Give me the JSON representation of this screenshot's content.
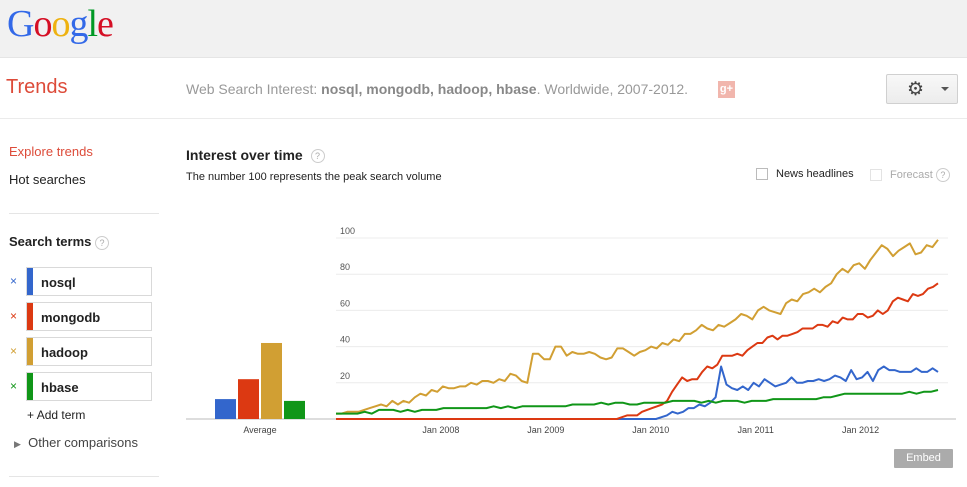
{
  "logo": {
    "letters": [
      "G",
      "o",
      "o",
      "g",
      "l",
      "e"
    ],
    "colors": [
      "#3369e8",
      "#d50f25",
      "#eeb211",
      "#3369e8",
      "#009925",
      "#d50f25"
    ]
  },
  "header": {
    "app_title": "Trends",
    "subtitle_prefix": "Web Search Interest: ",
    "subtitle_terms": "nosql, mongodb, hadoop, hbase",
    "subtitle_suffix": ". Worldwide, 2007-2012.",
    "gplus_label": "g+",
    "settings_icon": "gear-icon"
  },
  "sidebar": {
    "explore": "Explore trends",
    "hot": "Hot searches",
    "search_terms_title": "Search terms",
    "help": "?",
    "terms": [
      {
        "label": "nosql",
        "color": "#3366cc"
      },
      {
        "label": "mongodb",
        "color": "#dc3912"
      },
      {
        "label": "hadoop",
        "color": "#d19f33"
      },
      {
        "label": "hbase",
        "color": "#109618"
      }
    ],
    "remove_glyph": "×",
    "add_term": "Add term",
    "other_comparisons": "Other comparisons"
  },
  "main": {
    "title": "Interest over time",
    "note": "The number 100 represents the peak search volume",
    "news_headlines": "News headlines",
    "forecast": "Forecast",
    "embed": "Embed"
  },
  "chart_data": {
    "type": "line",
    "ylim": [
      0,
      100
    ],
    "yticks": [
      20,
      40,
      60,
      80,
      100
    ],
    "xticks": [
      "Jan 2008",
      "Jan 2009",
      "Jan 2010",
      "Jan 2011",
      "Jan 2012"
    ],
    "x_start": "2007-01",
    "x_end": "2012-11",
    "average_label": "Average",
    "averages": [
      {
        "name": "nosql",
        "value": 11
      },
      {
        "name": "mongodb",
        "value": 22
      },
      {
        "name": "hadoop",
        "value": 42
      },
      {
        "name": "hbase",
        "value": 10
      }
    ],
    "series": [
      {
        "name": "nosql",
        "color": "#3366cc",
        "values": [
          0,
          0,
          0,
          0,
          0,
          0,
          0,
          0,
          0,
          0,
          0,
          0,
          0,
          0,
          0,
          0,
          0,
          0,
          0,
          0,
          0,
          0,
          0,
          0,
          0,
          0,
          0,
          0,
          0,
          0,
          0,
          0,
          0,
          0,
          0,
          0,
          0,
          0,
          0,
          0,
          0,
          0,
          0,
          0,
          0,
          0,
          0,
          0,
          0,
          0,
          0,
          0,
          0,
          0,
          0,
          0,
          0,
          0,
          0,
          0,
          1,
          2,
          4,
          3,
          4,
          6,
          6,
          8,
          7,
          9,
          12,
          29,
          19,
          17,
          16,
          18,
          16,
          20,
          18,
          22,
          20,
          18,
          19,
          20,
          23,
          20,
          20,
          21,
          21,
          22,
          21,
          22,
          24,
          23,
          21,
          27,
          22,
          23,
          26,
          21,
          27,
          29,
          27,
          27,
          26,
          26,
          26,
          28,
          26,
          26,
          28,
          26
        ]
      },
      {
        "name": "mongodb",
        "color": "#dc3912",
        "values": [
          0,
          0,
          0,
          0,
          0,
          0,
          0,
          0,
          0,
          0,
          0,
          0,
          0,
          0,
          0,
          0,
          0,
          0,
          0,
          0,
          0,
          0,
          0,
          0,
          0,
          0,
          0,
          0,
          0,
          0,
          0,
          0,
          0,
          0,
          0,
          0,
          0,
          0,
          0,
          0,
          0,
          0,
          0,
          0,
          0,
          0,
          0,
          0,
          0,
          0,
          0,
          0,
          0,
          0,
          0,
          0,
          0,
          1,
          2,
          2,
          2,
          4,
          5,
          6,
          7,
          8,
          10,
          15,
          19,
          23,
          21,
          22,
          22,
          26,
          29,
          28,
          30,
          35,
          35,
          35,
          36,
          35,
          38,
          40,
          42,
          42,
          45,
          46,
          44,
          46,
          46,
          47,
          48,
          50,
          50,
          50,
          52,
          52,
          51,
          54,
          53,
          56,
          55,
          55,
          58,
          58,
          56,
          57,
          60,
          58,
          60,
          65,
          67,
          66,
          65,
          69,
          68,
          69,
          72,
          73,
          75
        ]
      },
      {
        "name": "hadoop",
        "color": "#d19f33",
        "values": [
          3,
          3,
          4,
          4,
          4,
          5,
          6,
          7,
          8,
          7,
          10,
          8,
          10,
          9,
          12,
          14,
          13,
          16,
          15,
          18,
          17,
          17,
          18,
          18,
          20,
          19,
          21,
          21,
          20,
          22,
          21,
          25,
          24,
          21,
          20,
          36,
          36,
          33,
          33,
          40,
          40,
          35,
          37,
          36,
          36,
          37,
          36,
          34,
          33,
          34,
          39,
          39,
          37,
          35,
          37,
          38,
          40,
          39,
          42,
          41,
          44,
          43,
          47,
          47,
          49,
          52,
          50,
          49,
          52,
          51,
          53,
          55,
          58,
          57,
          55,
          60,
          62,
          60,
          59,
          58,
          64,
          66,
          65,
          69,
          70,
          72,
          70,
          73,
          75,
          80,
          83,
          81,
          85,
          86,
          83,
          88,
          92,
          96,
          94,
          90,
          93,
          95,
          97,
          91,
          92,
          96,
          95,
          99
        ]
      },
      {
        "name": "hbase",
        "color": "#109618",
        "values": [
          3,
          3,
          3,
          3,
          4,
          3,
          5,
          5,
          5,
          4,
          5,
          4,
          5,
          5,
          5,
          6,
          6,
          6,
          6,
          6,
          6,
          6,
          7,
          6,
          7,
          6,
          7,
          7,
          7,
          7,
          7,
          7,
          7,
          8,
          8,
          8,
          8,
          9,
          8,
          9,
          9,
          8,
          8,
          9,
          9,
          9,
          9,
          10,
          10,
          10,
          10,
          9,
          10,
          9,
          10,
          10,
          10,
          9,
          10,
          10,
          10,
          11,
          11,
          11,
          11,
          11,
          11,
          11,
          12,
          12,
          13,
          14,
          14,
          14,
          14,
          14,
          14,
          14,
          14,
          14,
          15,
          14,
          15,
          15,
          16
        ]
      }
    ]
  }
}
